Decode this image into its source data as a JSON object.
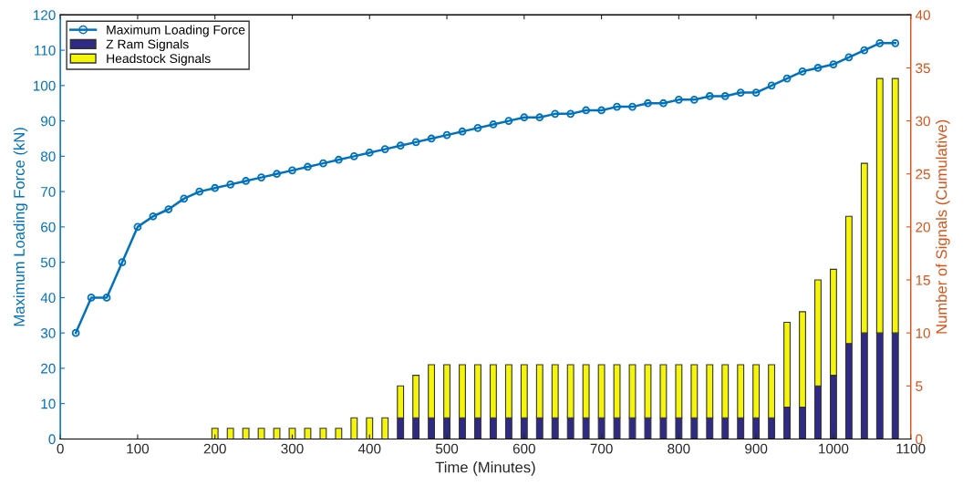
{
  "chart_data": {
    "type": "bar",
    "stacked": true,
    "xlabel": "Time (Minutes)",
    "ylabel": "Maximum Loading Force (kN)",
    "y2label": "Number of Signals (Cumulative)",
    "x": [
      20,
      40,
      60,
      80,
      100,
      120,
      140,
      160,
      180,
      200,
      220,
      240,
      260,
      280,
      300,
      320,
      340,
      360,
      380,
      400,
      420,
      440,
      460,
      480,
      500,
      520,
      540,
      560,
      580,
      600,
      620,
      640,
      660,
      680,
      700,
      720,
      740,
      760,
      780,
      800,
      820,
      840,
      860,
      880,
      900,
      920,
      940,
      960,
      980,
      1000,
      1020,
      1040,
      1060,
      1080
    ],
    "series": [
      {
        "name": "Maximum Loading Force",
        "type": "line",
        "color": "#0072bd",
        "marker": "circle",
        "values": [
          30,
          40,
          40,
          50,
          60,
          63,
          65,
          68,
          70,
          71,
          72,
          73,
          74,
          75,
          76,
          77,
          78,
          79,
          80,
          81,
          82,
          83,
          84,
          85,
          86,
          87,
          88,
          89,
          90,
          91,
          91,
          92,
          92,
          93,
          93,
          94,
          94,
          95,
          95,
          96,
          96,
          97,
          97,
          98,
          98,
          100,
          102,
          104,
          105,
          106,
          108,
          110,
          112,
          112
        ]
      },
      {
        "name": "Z Ram Signals",
        "axis": "y2",
        "color": "#2e2a85",
        "values": [
          0,
          0,
          0,
          0,
          0,
          0,
          0,
          0,
          0,
          0,
          0,
          0,
          0,
          0,
          0,
          0,
          0,
          0,
          0,
          0,
          0,
          2,
          2,
          2,
          2,
          2,
          2,
          2,
          2,
          2,
          2,
          2,
          2,
          2,
          2,
          2,
          2,
          2,
          2,
          2,
          2,
          2,
          2,
          2,
          2,
          2,
          3,
          3,
          5,
          6,
          9,
          10,
          10,
          10
        ]
      },
      {
        "name": "Headstock Signals",
        "axis": "y2",
        "color": "#f5f50a",
        "values": [
          0,
          0,
          0,
          0,
          0,
          0,
          0,
          0,
          0,
          1,
          1,
          1,
          1,
          1,
          1,
          1,
          1,
          1,
          2,
          2,
          2,
          3,
          4,
          5,
          5,
          5,
          5,
          5,
          5,
          5,
          5,
          5,
          5,
          5,
          5,
          5,
          5,
          5,
          5,
          5,
          5,
          5,
          5,
          5,
          5,
          5,
          8,
          9,
          10,
          10,
          12,
          16,
          24,
          24
        ]
      }
    ],
    "xlim": [
      0,
      1100
    ],
    "xticks": [
      0,
      100,
      200,
      300,
      400,
      500,
      600,
      700,
      800,
      900,
      1000,
      1100
    ],
    "ylim": [
      0,
      120
    ],
    "yticks": [
      0,
      10,
      20,
      30,
      40,
      50,
      60,
      70,
      80,
      90,
      100,
      110,
      120
    ],
    "y2lim": [
      0,
      40
    ],
    "y2ticks": [
      0,
      5,
      10,
      15,
      20,
      25,
      30,
      35,
      40
    ],
    "legend": "top left",
    "grid": false
  }
}
